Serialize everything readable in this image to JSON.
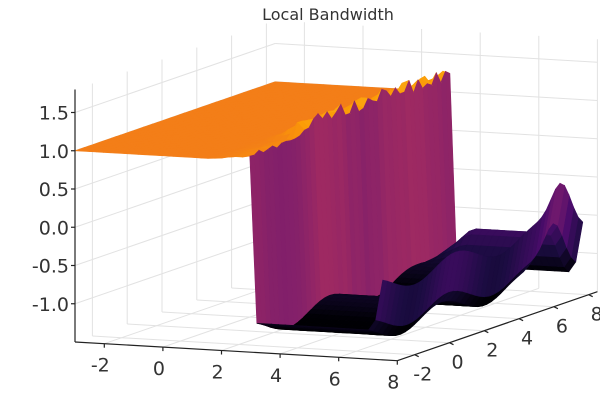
{
  "chart_data": {
    "type": "surface",
    "title": "Local Bandwidth",
    "xlabel": "",
    "ylabel": "",
    "zlabel": "",
    "xlim": [
      -3,
      8
    ],
    "ylim": [
      -3,
      8.5
    ],
    "zlim": [
      -1.5,
      1.8
    ],
    "grid": true,
    "legend": "none",
    "x_ticks": [
      -2,
      0,
      2,
      4,
      6,
      8
    ],
    "y_ticks": [
      -2,
      0,
      2,
      4,
      6,
      8
    ],
    "z_ticks": [
      -1.0,
      -0.5,
      0.0,
      0.5,
      1.0,
      1.5
    ],
    "z_tick_labels": [
      "-1.0",
      "-0.5",
      "0.0",
      "0.5",
      "1.0",
      "1.5"
    ],
    "colormap": [
      "#000004",
      "#1b0c41",
      "#4a0c6b",
      "#781c6d",
      "#a52c60",
      "#cf4446",
      "#ed6925",
      "#fb9b06",
      "#f7d13d"
    ],
    "surface": {
      "plateau_region": "x <= 3",
      "plateau_value": 1.0,
      "trough_region": "x > 3",
      "trough_value": -1.2,
      "outer_wall_peak": 1.5
    }
  }
}
